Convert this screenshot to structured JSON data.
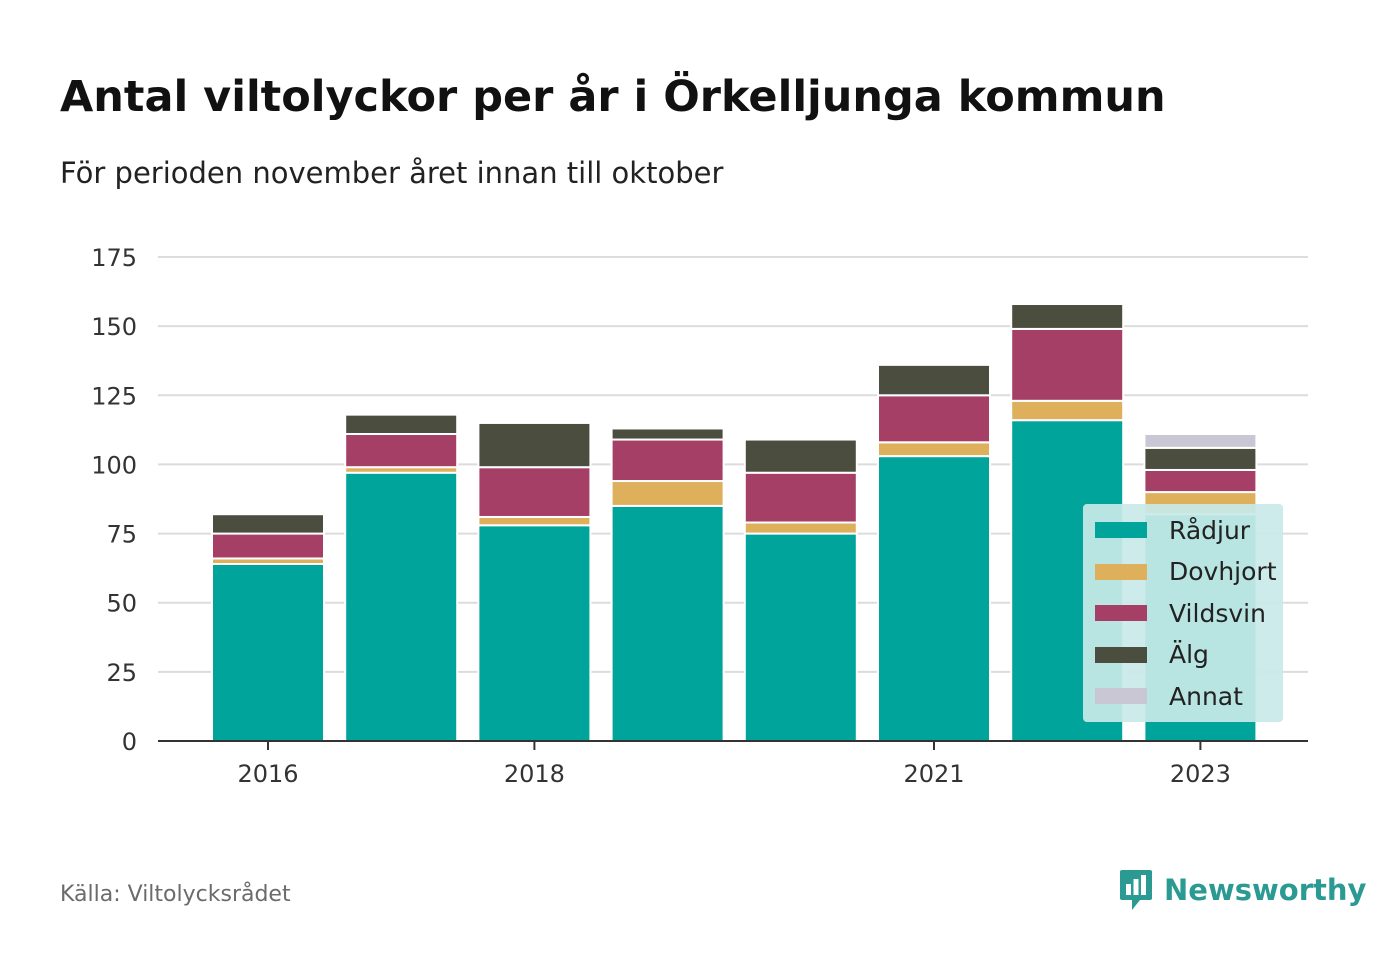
{
  "title": "Antal viltolyckor per år i Örkelljunga kommun",
  "subtitle": "För perioden november året innan till oktober",
  "source": "Källa: Viltolycksrådet",
  "brand": {
    "name": "Newsworthy",
    "icon": "newsworthy-logo-icon",
    "color": "#2b9a92"
  },
  "chart_data": {
    "type": "bar",
    "stacked": true,
    "x": [
      2016,
      2017,
      2018,
      2019,
      2020,
      2021,
      2022,
      2023
    ],
    "x_tick_labels": [
      "2016",
      "2018",
      "2021",
      "2023"
    ],
    "x_tick_values": [
      2016,
      2018,
      2021,
      2023
    ],
    "y_ticks": [
      0,
      25,
      50,
      75,
      100,
      125,
      150,
      175
    ],
    "ylim": [
      0,
      175
    ],
    "grid": true,
    "legend_position": "bottom-right",
    "series": [
      {
        "name": "Rådjur",
        "color": "#00a49a",
        "values": [
          64,
          97,
          78,
          85,
          75,
          103,
          116,
          82
        ]
      },
      {
        "name": "Dovhjort",
        "color": "#deb05c",
        "values": [
          2,
          2,
          3,
          9,
          4,
          5,
          7,
          8
        ]
      },
      {
        "name": "Vildsvin",
        "color": "#a63f66",
        "values": [
          9,
          12,
          18,
          15,
          18,
          17,
          26,
          8
        ]
      },
      {
        "name": "Älg",
        "color": "#4b4e3f",
        "values": [
          7,
          7,
          16,
          4,
          12,
          11,
          9,
          8
        ]
      },
      {
        "name": "Annat",
        "color": "#c8c7d3",
        "values": [
          0,
          0,
          0,
          0,
          0,
          0,
          0,
          5
        ]
      }
    ]
  }
}
